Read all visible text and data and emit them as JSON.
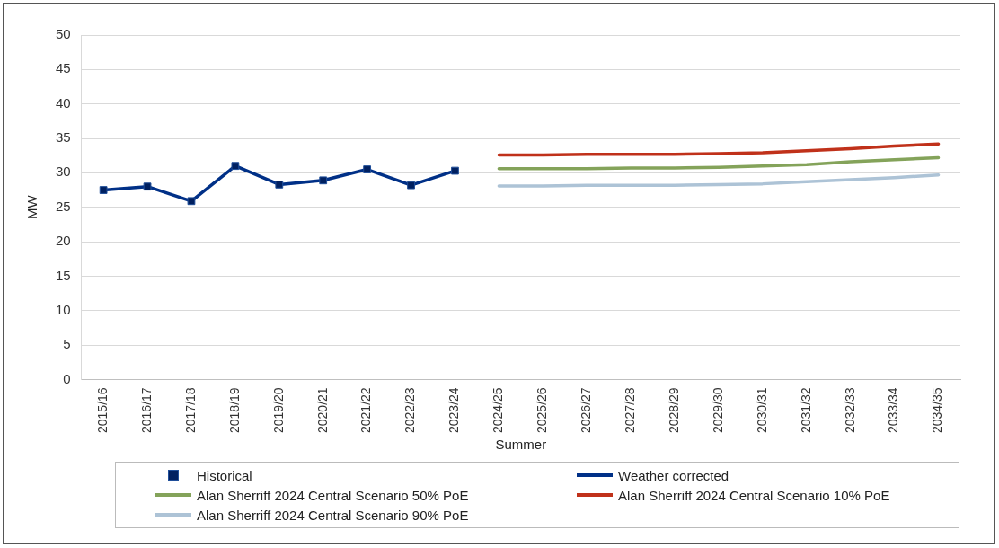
{
  "chart_data": {
    "type": "line",
    "xlabel": "Summer",
    "ylabel": "MW",
    "categories": [
      "2015/16",
      "2016/17",
      "2017/18",
      "2018/19",
      "2019/20",
      "2020/21",
      "2021/22",
      "2022/23",
      "2023/24",
      "2024/25",
      "2025/26",
      "2026/27",
      "2027/28",
      "2028/29",
      "2029/30",
      "2030/31",
      "2031/32",
      "2032/33",
      "2033/34",
      "2034/35"
    ],
    "ylim": [
      0,
      50
    ],
    "yticks": [
      0,
      5,
      10,
      15,
      20,
      25,
      30,
      35,
      40,
      45,
      50
    ],
    "grid": "y",
    "legend": "bottom",
    "series": [
      {
        "name": "Historical",
        "type": "scatter",
        "marker": "square",
        "color": "#002060",
        "values": [
          27.5,
          28.0,
          25.9,
          31.0,
          28.3,
          28.9,
          30.5,
          28.2,
          30.3,
          null,
          null,
          null,
          null,
          null,
          null,
          null,
          null,
          null,
          null,
          null
        ]
      },
      {
        "name": "Weather corrected",
        "type": "line",
        "marker": "none",
        "color": "#003087",
        "values": [
          27.5,
          28.0,
          25.9,
          31.0,
          28.3,
          28.9,
          30.5,
          28.2,
          30.3,
          null,
          null,
          null,
          null,
          null,
          null,
          null,
          null,
          null,
          null,
          null
        ]
      },
      {
        "name": "Alan Sherriff 2024 Central Scenario 50% PoE",
        "type": "line",
        "marker": "none",
        "color": "#84a35a",
        "values": [
          null,
          null,
          null,
          null,
          null,
          null,
          null,
          null,
          null,
          30.6,
          30.6,
          30.6,
          30.7,
          30.7,
          30.8,
          31.0,
          31.2,
          31.6,
          31.9,
          32.2
        ]
      },
      {
        "name": "Alan Sherriff 2024 Central Scenario 10% PoE",
        "type": "line",
        "marker": "none",
        "color": "#c0311a",
        "values": [
          null,
          null,
          null,
          null,
          null,
          null,
          null,
          null,
          null,
          32.6,
          32.6,
          32.7,
          32.7,
          32.7,
          32.8,
          32.9,
          33.2,
          33.5,
          33.9,
          34.2
        ]
      },
      {
        "name": "Alan Sherriff 2024 Central Scenario 90% PoE",
        "type": "line",
        "marker": "none",
        "color": "#adc3d6",
        "values": [
          null,
          null,
          null,
          null,
          null,
          null,
          null,
          null,
          null,
          28.1,
          28.1,
          28.2,
          28.2,
          28.2,
          28.3,
          28.4,
          28.7,
          29.0,
          29.3,
          29.7
        ]
      }
    ]
  }
}
